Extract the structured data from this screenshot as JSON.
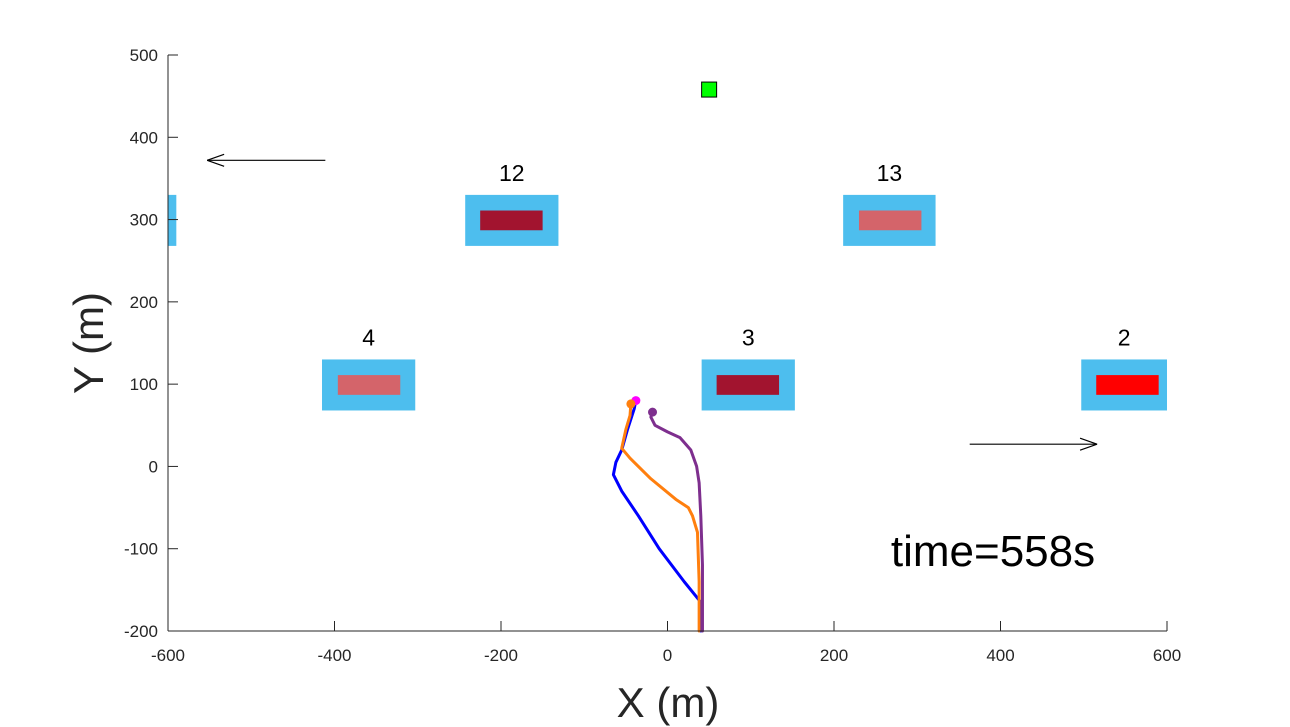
{
  "chart_data": {
    "type": "scatter",
    "title": "",
    "xlabel": "X (m)",
    "ylabel": "Y (m)",
    "xlim": [
      -600,
      600
    ],
    "ylim": [
      -200,
      500
    ],
    "xticks": [
      -600,
      -400,
      -200,
      0,
      200,
      400,
      600
    ],
    "yticks": [
      -200,
      -100,
      0,
      100,
      200,
      300,
      400,
      500
    ],
    "xtick_labels": [
      "-600",
      "-400",
      "-200",
      "0",
      "200",
      "400",
      "600"
    ],
    "ytick_labels": [
      "-200",
      "-100",
      "0",
      "100",
      "200",
      "300",
      "400",
      "500"
    ],
    "grid": false,
    "annotation": "time=558s",
    "colors": {
      "lane": "#4dbeee",
      "red": "#ff0000",
      "dark_red": "#a2142f",
      "light_red": "#d4646a",
      "target": "#00ff00",
      "blue": "#0000ff",
      "orange": "#ff7f0e",
      "purple": "#7e2f8e",
      "magenta": "#ff00ff"
    },
    "blocks": [
      {
        "label": "",
        "x": [
          -600,
          -590
        ],
        "y": [
          268,
          330
        ],
        "inner": null
      },
      {
        "label": "12",
        "x": [
          -243,
          -131
        ],
        "y": [
          268,
          330
        ],
        "inner": "#a2142f",
        "ix": [
          -225,
          -150
        ],
        "iy": [
          287,
          311
        ]
      },
      {
        "label": "13",
        "x": [
          211,
          322
        ],
        "y": [
          268,
          330
        ],
        "inner": "#d4646a",
        "ix": [
          230,
          305
        ],
        "iy": [
          287,
          311
        ]
      },
      {
        "label": "4",
        "x": [
          -415,
          -303
        ],
        "y": [
          68,
          130
        ],
        "inner": "#d4646a",
        "ix": [
          -396,
          -321
        ],
        "iy": [
          87,
          111
        ]
      },
      {
        "label": "3",
        "x": [
          41,
          153
        ],
        "y": [
          68,
          130
        ],
        "inner": "#a2142f",
        "ix": [
          59,
          134
        ],
        "iy": [
          87,
          111
        ]
      },
      {
        "label": "2",
        "x": [
          497,
          600
        ],
        "y": [
          68,
          130
        ],
        "inner": "#ff0000",
        "ix": [
          515,
          590
        ],
        "iy": [
          87,
          111
        ]
      }
    ],
    "target_marker": {
      "x": 50,
      "y": 458,
      "color": "#00ff00"
    },
    "arrows": [
      {
        "direction": "left",
        "from": [
          -411,
          372
        ],
        "to": [
          -553,
          372
        ]
      },
      {
        "direction": "right",
        "from": [
          363,
          27
        ],
        "to": [
          516,
          27
        ]
      }
    ],
    "series": [
      {
        "color": "#0000ff",
        "points": [
          [
            40,
            -200
          ],
          [
            40,
            -165
          ],
          [
            20,
            -140
          ],
          [
            -10,
            -100
          ],
          [
            -35,
            -60
          ],
          [
            -55,
            -30
          ],
          [
            -65,
            -10
          ],
          [
            -62,
            5
          ],
          [
            -55,
            20
          ],
          [
            -48,
            45
          ],
          [
            -40,
            70
          ],
          [
            -38,
            80
          ]
        ],
        "end_marker": "#ff00ff"
      },
      {
        "color": "#ff7f0e",
        "points": [
          [
            38,
            -200
          ],
          [
            38,
            -140
          ],
          [
            36,
            -80
          ],
          [
            30,
            -60
          ],
          [
            25,
            -50
          ],
          [
            10,
            -40
          ],
          [
            -20,
            -15
          ],
          [
            -45,
            10
          ],
          [
            -55,
            22
          ],
          [
            -50,
            45
          ],
          [
            -45,
            62
          ],
          [
            -44,
            76
          ]
        ],
        "end_marker": "#ff7f0e"
      },
      {
        "color": "#7e2f8e",
        "points": [
          [
            42,
            -200
          ],
          [
            42,
            -120
          ],
          [
            40,
            -60
          ],
          [
            38,
            -20
          ],
          [
            35,
            0
          ],
          [
            28,
            20
          ],
          [
            15,
            35
          ],
          [
            0,
            42
          ],
          [
            -15,
            50
          ],
          [
            -20,
            60
          ],
          [
            -18,
            66
          ]
        ],
        "end_marker": "#7e2f8e"
      }
    ]
  }
}
